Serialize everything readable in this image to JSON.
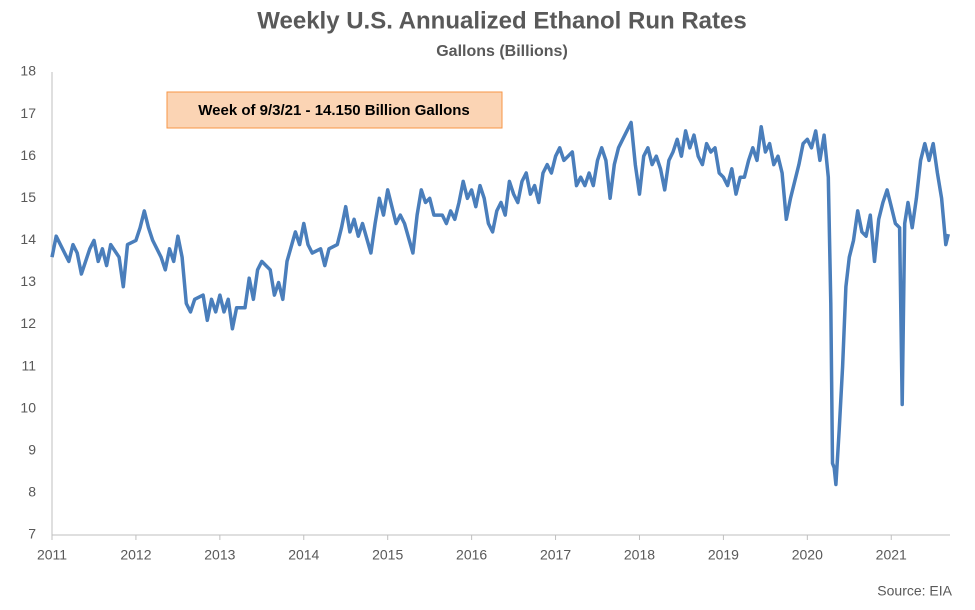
{
  "chart_data": {
    "type": "line",
    "title": "Weekly U.S. Annualized Ethanol Run Rates",
    "subtitle": "Gallons (Billions)",
    "annotation": "Week of 9/3/21 - 14.150 Billion Gallons",
    "source": "Source: EIA",
    "xlim": [
      2011,
      2021.7
    ],
    "xticks": [
      2011,
      2012,
      2013,
      2014,
      2015,
      2016,
      2017,
      2018,
      2019,
      2020,
      2021
    ],
    "ylim": [
      7,
      18
    ],
    "yticks": [
      7,
      8,
      9,
      10,
      11,
      12,
      13,
      14,
      15,
      16,
      17,
      18
    ],
    "grid": false,
    "series": [
      {
        "name": "Run Rate",
        "color": "#4a7ebb",
        "x": [
          2011.0,
          2011.05,
          2011.15,
          2011.2,
          2011.25,
          2011.3,
          2011.35,
          2011.45,
          2011.5,
          2011.55,
          2011.6,
          2011.65,
          2011.7,
          2011.8,
          2011.85,
          2011.9,
          2012.0,
          2012.05,
          2012.1,
          2012.15,
          2012.2,
          2012.3,
          2012.35,
          2012.4,
          2012.45,
          2012.5,
          2012.55,
          2012.6,
          2012.65,
          2012.7,
          2012.8,
          2012.85,
          2012.9,
          2012.95,
          2013.0,
          2013.05,
          2013.1,
          2013.15,
          2013.2,
          2013.3,
          2013.35,
          2013.4,
          2013.45,
          2013.5,
          2013.6,
          2013.65,
          2013.7,
          2013.75,
          2013.8,
          2013.9,
          2013.95,
          2014.0,
          2014.05,
          2014.1,
          2014.2,
          2014.25,
          2014.3,
          2014.4,
          2014.45,
          2014.5,
          2014.55,
          2014.6,
          2014.65,
          2014.7,
          2014.8,
          2014.85,
          2014.9,
          2014.95,
          2015.0,
          2015.05,
          2015.1,
          2015.15,
          2015.2,
          2015.3,
          2015.35,
          2015.4,
          2015.45,
          2015.5,
          2015.55,
          2015.65,
          2015.7,
          2015.75,
          2015.8,
          2015.85,
          2015.9,
          2015.95,
          2016.0,
          2016.05,
          2016.1,
          2016.15,
          2016.2,
          2016.25,
          2016.3,
          2016.35,
          2016.4,
          2016.45,
          2016.5,
          2016.55,
          2016.6,
          2016.65,
          2016.7,
          2016.75,
          2016.8,
          2016.85,
          2016.9,
          2016.95,
          2017.0,
          2017.05,
          2017.1,
          2017.15,
          2017.2,
          2017.25,
          2017.3,
          2017.35,
          2017.4,
          2017.45,
          2017.5,
          2017.55,
          2017.6,
          2017.65,
          2017.7,
          2017.75,
          2017.8,
          2017.9,
          2017.95,
          2018.0,
          2018.05,
          2018.1,
          2018.15,
          2018.2,
          2018.25,
          2018.3,
          2018.35,
          2018.4,
          2018.45,
          2018.5,
          2018.55,
          2018.6,
          2018.65,
          2018.7,
          2018.75,
          2018.8,
          2018.85,
          2018.9,
          2018.95,
          2019.0,
          2019.05,
          2019.1,
          2019.15,
          2019.2,
          2019.25,
          2019.3,
          2019.35,
          2019.4,
          2019.45,
          2019.5,
          2019.55,
          2019.6,
          2019.65,
          2019.7,
          2019.75,
          2019.8,
          2019.85,
          2019.9,
          2019.95,
          2020.0,
          2020.05,
          2020.1,
          2020.15,
          2020.2,
          2020.25,
          2020.28,
          2020.3,
          2020.32,
          2020.34,
          2020.38,
          2020.42,
          2020.46,
          2020.5,
          2020.55,
          2020.6,
          2020.65,
          2020.7,
          2020.75,
          2020.8,
          2020.85,
          2020.9,
          2020.95,
          2021.0,
          2021.05,
          2021.1,
          2021.13,
          2021.16,
          2021.2,
          2021.25,
          2021.3,
          2021.35,
          2021.4,
          2021.45,
          2021.5,
          2021.55,
          2021.6,
          2021.65,
          2021.68
        ],
        "values": [
          13.6,
          14.1,
          13.7,
          13.5,
          13.9,
          13.7,
          13.2,
          13.8,
          14.0,
          13.5,
          13.8,
          13.4,
          13.9,
          13.6,
          12.9,
          13.9,
          14.0,
          14.3,
          14.7,
          14.3,
          14.0,
          13.6,
          13.3,
          13.8,
          13.5,
          14.1,
          13.6,
          12.5,
          12.3,
          12.6,
          12.7,
          12.1,
          12.6,
          12.3,
          12.7,
          12.3,
          12.6,
          11.9,
          12.4,
          12.4,
          13.1,
          12.6,
          13.3,
          13.5,
          13.3,
          12.7,
          13.0,
          12.6,
          13.5,
          14.2,
          13.9,
          14.4,
          13.9,
          13.7,
          13.8,
          13.4,
          13.8,
          13.9,
          14.3,
          14.8,
          14.2,
          14.5,
          14.1,
          14.4,
          13.7,
          14.4,
          15.0,
          14.6,
          15.2,
          14.8,
          14.4,
          14.6,
          14.4,
          13.7,
          14.6,
          15.2,
          14.9,
          15.0,
          14.6,
          14.6,
          14.4,
          14.7,
          14.5,
          14.9,
          15.4,
          15.0,
          15.2,
          14.8,
          15.3,
          15.0,
          14.4,
          14.2,
          14.7,
          14.9,
          14.6,
          15.4,
          15.1,
          14.9,
          15.4,
          15.6,
          15.1,
          15.3,
          14.9,
          15.6,
          15.8,
          15.6,
          16.0,
          16.2,
          15.9,
          16.0,
          16.1,
          15.3,
          15.5,
          15.3,
          15.6,
          15.3,
          15.9,
          16.2,
          15.9,
          15.0,
          15.8,
          16.2,
          16.4,
          16.8,
          15.8,
          15.1,
          16.0,
          16.2,
          15.8,
          16.0,
          15.7,
          15.2,
          15.9,
          16.1,
          16.4,
          16.0,
          16.6,
          16.2,
          16.5,
          16.0,
          15.8,
          16.3,
          16.1,
          16.2,
          15.6,
          15.5,
          15.3,
          15.7,
          15.1,
          15.5,
          15.5,
          15.9,
          16.2,
          15.9,
          16.7,
          16.1,
          16.3,
          15.8,
          16.0,
          15.6,
          14.5,
          15.0,
          15.4,
          15.8,
          16.3,
          16.4,
          16.2,
          16.6,
          15.9,
          16.5,
          15.5,
          12.5,
          8.7,
          8.6,
          8.2,
          9.5,
          11.0,
          12.9,
          13.6,
          14.0,
          14.7,
          14.2,
          14.1,
          14.6,
          13.5,
          14.5,
          14.9,
          15.2,
          14.8,
          14.4,
          14.3,
          10.1,
          14.4,
          14.9,
          14.3,
          15.0,
          15.9,
          16.3,
          15.9,
          16.3,
          15.6,
          15.0,
          13.9,
          14.15
        ]
      }
    ]
  }
}
